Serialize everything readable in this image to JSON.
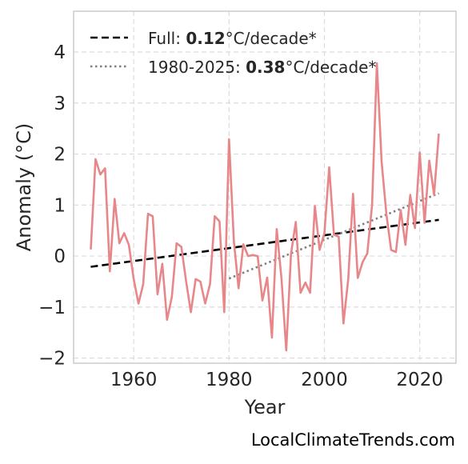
{
  "chart_data": {
    "type": "line",
    "title": "",
    "xlabel": "Year",
    "ylabel": "Anomaly (°C)",
    "xlim": [
      1947.4,
      2027.6
    ],
    "ylim": [
      -2.1,
      4.8
    ],
    "xticks": [
      1960,
      1980,
      2000,
      2020
    ],
    "xtick_labels": [
      "1960",
      "1980",
      "2000",
      "2020"
    ],
    "yticks": [
      -2,
      -1,
      0,
      1,
      2,
      3,
      4
    ],
    "ytick_labels": [
      "−2",
      "−1",
      "0",
      "1",
      "2",
      "3",
      "4"
    ],
    "grid": true,
    "legend_position": "top-left",
    "series": [
      {
        "color": "#e8878a",
        "x": [
          1951,
          1952,
          1953,
          1954,
          1955,
          1956,
          1957,
          1958,
          1959,
          1960,
          1961,
          1962,
          1963,
          1964,
          1965,
          1966,
          1967,
          1968,
          1969,
          1970,
          1971,
          1972,
          1973,
          1974,
          1975,
          1976,
          1977,
          1978,
          1979,
          1980,
          1981,
          1982,
          1983,
          1984,
          1985,
          1986,
          1987,
          1988,
          1989,
          1990,
          1991,
          1992,
          1993,
          1994,
          1995,
          1996,
          1997,
          1998,
          1999,
          2000,
          2001,
          2002,
          2003,
          2004,
          2005,
          2006,
          2007,
          2008,
          2009,
          2010,
          2011,
          2012,
          2013,
          2014,
          2015,
          2016,
          2017,
          2018,
          2019,
          2020,
          2021,
          2022,
          2023,
          2024
        ],
        "y": [
          0.13,
          1.9,
          1.6,
          1.72,
          -0.3,
          1.12,
          0.25,
          0.45,
          0.22,
          -0.45,
          -0.93,
          -0.55,
          0.83,
          0.78,
          -0.75,
          -0.15,
          -1.25,
          -0.8,
          0.25,
          0.18,
          -0.5,
          -1.1,
          -0.45,
          -0.5,
          -0.93,
          -0.55,
          0.78,
          0.68,
          -1.1,
          2.29,
          0.3,
          -0.63,
          0.23,
          0.0,
          0.02,
          0.0,
          -0.87,
          -0.42,
          -1.6,
          0.53,
          -0.45,
          -1.85,
          0.05,
          0.67,
          -0.72,
          -0.52,
          -0.72,
          0.98,
          0.12,
          0.45,
          1.74,
          0.42,
          0.38,
          -1.32,
          -0.45,
          1.22,
          -0.43,
          -0.12,
          0.05,
          1.0,
          3.78,
          1.85,
          0.82,
          0.12,
          0.08,
          0.9,
          0.22,
          1.2,
          0.55,
          2.03,
          0.65,
          1.87,
          1.2,
          2.4
        ]
      }
    ],
    "trends": [
      {
        "name": "Full",
        "rate": "0.12",
        "unit": "°C/decade*",
        "style": "dashed",
        "color": "#000000",
        "x": [
          1951,
          2024
        ],
        "y": [
          -0.21,
          0.71
        ]
      },
      {
        "name": "1980-2025",
        "rate": "0.38",
        "unit": "°C/decade*",
        "style": "dotted",
        "color": "#808080",
        "x": [
          1980,
          2024
        ],
        "y": [
          -0.44,
          1.23
        ]
      }
    ]
  },
  "watermark": "LocalClimateTrends.com"
}
